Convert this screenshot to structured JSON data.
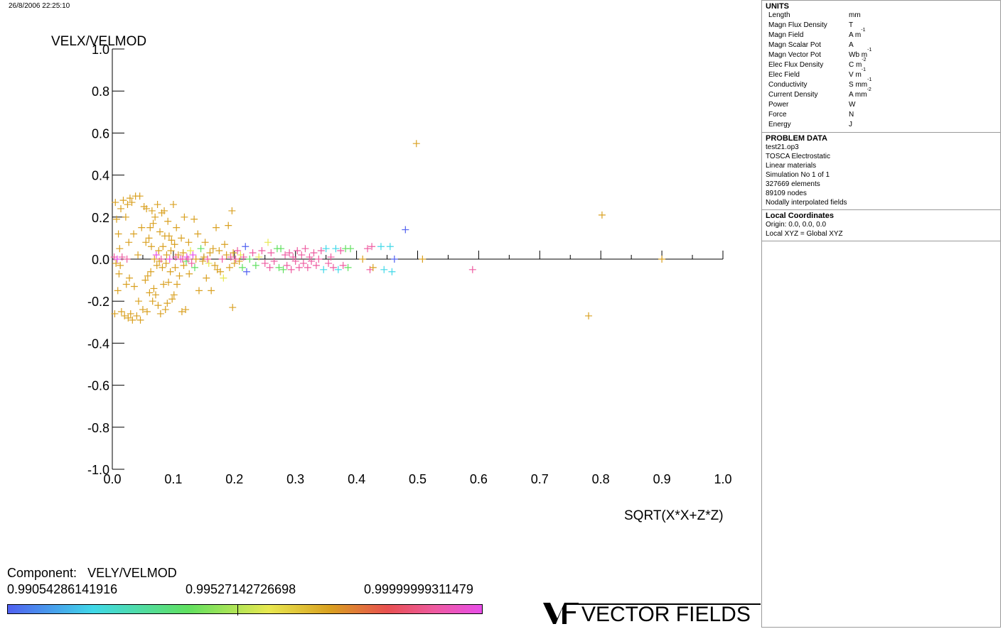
{
  "timestamp": "26/8/2006 22:25:10",
  "chart_data": {
    "type": "scatter",
    "xlabel": "SQRT(X*X+Z*Z)",
    "ylabel": "VELX/VELMOD",
    "xlim": [
      0.0,
      1.0
    ],
    "ylim": [
      -1.0,
      1.0
    ],
    "x_ticks": [
      "0.0",
      "0.1",
      "0.2",
      "0.3",
      "0.4",
      "0.5",
      "0.6",
      "0.7",
      "0.8",
      "0.9",
      "1.0"
    ],
    "y_ticks": [
      "1.0",
      "0.8",
      "0.6",
      "0.4",
      "0.2",
      "0.0",
      "-0.2",
      "-0.4",
      "-0.6",
      "-0.8",
      "-1.0"
    ],
    "marker": "+",
    "color_component": "VELY/VELMOD",
    "color_range": [
      0.99054286141916,
      0.99999999311479
    ],
    "colors": {
      "orange": "#d9a020",
      "pink": "#ee5aa0",
      "magenta": "#e84ee8",
      "green": "#60e060",
      "cyan": "#40d8e8",
      "blue": "#5060f0",
      "yellow": "#e8e850",
      "red": "#e85050",
      "axis": "#000000"
    },
    "points": [
      [
        0.003,
        0.01,
        "pink"
      ],
      [
        0.004,
        -0.26,
        "orange"
      ],
      [
        0.005,
        0.27,
        "orange"
      ],
      [
        0.006,
        -0.02,
        "orange"
      ],
      [
        0.007,
        0.19,
        "orange"
      ],
      [
        0.008,
        0.0,
        "magenta"
      ],
      [
        0.009,
        -0.15,
        "orange"
      ],
      [
        0.01,
        0.12,
        "orange"
      ],
      [
        0.011,
        -0.07,
        "orange"
      ],
      [
        0.012,
        0.05,
        "orange"
      ],
      [
        0.013,
        -0.03,
        "orange"
      ],
      [
        0.014,
        0.24,
        "orange"
      ],
      [
        0.015,
        -0.25,
        "orange"
      ],
      [
        0.016,
        0.01,
        "pink"
      ],
      [
        0.018,
        0.28,
        "orange"
      ],
      [
        0.02,
        -0.27,
        "orange"
      ],
      [
        0.022,
        0.2,
        "orange"
      ],
      [
        0.023,
        -0.12,
        "orange"
      ],
      [
        0.024,
        0.0,
        "pink"
      ],
      [
        0.025,
        0.26,
        "orange"
      ],
      [
        0.026,
        -0.28,
        "orange"
      ],
      [
        0.027,
        0.08,
        "orange"
      ],
      [
        0.028,
        -0.09,
        "orange"
      ],
      [
        0.029,
        0.29,
        "orange"
      ],
      [
        0.03,
        -0.26,
        "orange"
      ],
      [
        0.032,
        0.27,
        "orange"
      ],
      [
        0.033,
        -0.29,
        "orange"
      ],
      [
        0.035,
        0.12,
        "orange"
      ],
      [
        0.036,
        -0.13,
        "orange"
      ],
      [
        0.038,
        0.3,
        "orange"
      ],
      [
        0.04,
        -0.27,
        "orange"
      ],
      [
        0.042,
        0.02,
        "orange"
      ],
      [
        0.043,
        -0.2,
        "orange"
      ],
      [
        0.045,
        0.3,
        "orange"
      ],
      [
        0.046,
        -0.29,
        "orange"
      ],
      [
        0.048,
        0.15,
        "orange"
      ],
      [
        0.05,
        -0.24,
        "orange"
      ],
      [
        0.052,
        0.25,
        "orange"
      ],
      [
        0.054,
        -0.1,
        "orange"
      ],
      [
        0.055,
        0.08,
        "orange"
      ],
      [
        0.056,
        0.24,
        "orange"
      ],
      [
        0.057,
        -0.25,
        "orange"
      ],
      [
        0.058,
        -0.08,
        "orange"
      ],
      [
        0.06,
        0.1,
        "orange"
      ],
      [
        0.061,
        -0.16,
        "orange"
      ],
      [
        0.062,
        0.15,
        "orange"
      ],
      [
        0.063,
        -0.06,
        "orange"
      ],
      [
        0.064,
        0.06,
        "orange"
      ],
      [
        0.065,
        0.23,
        "orange"
      ],
      [
        0.066,
        -0.2,
        "orange"
      ],
      [
        0.067,
        0.17,
        "orange"
      ],
      [
        0.068,
        -0.14,
        "orange"
      ],
      [
        0.069,
        0.0,
        "orange"
      ],
      [
        0.07,
        0.2,
        "orange"
      ],
      [
        0.071,
        -0.17,
        "orange"
      ],
      [
        0.072,
        0.02,
        "magenta"
      ],
      [
        0.073,
        -0.03,
        "orange"
      ],
      [
        0.074,
        0.26,
        "orange"
      ],
      [
        0.075,
        -0.22,
        "orange"
      ],
      [
        0.076,
        0.04,
        "orange"
      ],
      [
        0.077,
        -0.01,
        "orange"
      ],
      [
        0.078,
        0.13,
        "orange"
      ],
      [
        0.079,
        -0.26,
        "orange"
      ],
      [
        0.08,
        0.0,
        "pink"
      ],
      [
        0.081,
        0.22,
        "orange"
      ],
      [
        0.082,
        -0.04,
        "orange"
      ],
      [
        0.083,
        0.06,
        "orange"
      ],
      [
        0.084,
        -0.12,
        "orange"
      ],
      [
        0.085,
        0.23,
        "orange"
      ],
      [
        0.086,
        0.11,
        "orange"
      ],
      [
        0.087,
        -0.24,
        "orange"
      ],
      [
        0.088,
        -0.02,
        "orange"
      ],
      [
        0.089,
        0.02,
        "orange"
      ],
      [
        0.09,
        -0.21,
        "orange"
      ],
      [
        0.091,
        0.18,
        "orange"
      ],
      [
        0.092,
        -0.11,
        "orange"
      ],
      [
        0.093,
        0.11,
        "orange"
      ],
      [
        0.094,
        0.0,
        "magenta"
      ],
      [
        0.095,
        -0.06,
        "orange"
      ],
      [
        0.096,
        0.04,
        "orange"
      ],
      [
        0.097,
        0.09,
        "orange"
      ],
      [
        0.098,
        -0.19,
        "orange"
      ],
      [
        0.1,
        0.26,
        "orange"
      ],
      [
        0.101,
        -0.17,
        "orange"
      ],
      [
        0.102,
        0.07,
        "orange"
      ],
      [
        0.103,
        -0.04,
        "orange"
      ],
      [
        0.104,
        0.01,
        "pink"
      ],
      [
        0.105,
        0.15,
        "orange"
      ],
      [
        0.106,
        -0.12,
        "orange"
      ],
      [
        0.108,
        0.02,
        "orange"
      ],
      [
        0.11,
        -0.08,
        "orange"
      ],
      [
        0.112,
        0.0,
        "magenta"
      ],
      [
        0.113,
        0.1,
        "orange"
      ],
      [
        0.114,
        -0.25,
        "orange"
      ],
      [
        0.115,
        0.0,
        "pink"
      ],
      [
        0.116,
        0.03,
        "orange"
      ],
      [
        0.117,
        -0.03,
        "orange"
      ],
      [
        0.118,
        0.2,
        "orange"
      ],
      [
        0.12,
        -0.24,
        "orange"
      ],
      [
        0.121,
        -0.01,
        "green"
      ],
      [
        0.122,
        0.01,
        "magenta"
      ],
      [
        0.124,
        0.0,
        "pink"
      ],
      [
        0.125,
        0.08,
        "orange"
      ],
      [
        0.126,
        -0.07,
        "orange"
      ],
      [
        0.128,
        0.04,
        "yellow"
      ],
      [
        0.13,
        -0.02,
        "pink"
      ],
      [
        0.132,
        0.02,
        "magenta"
      ],
      [
        0.134,
        0.19,
        "orange"
      ],
      [
        0.135,
        -0.04,
        "green"
      ],
      [
        0.137,
        0.0,
        "orange"
      ],
      [
        0.14,
        0.12,
        "orange"
      ],
      [
        0.142,
        -0.15,
        "orange"
      ],
      [
        0.145,
        0.05,
        "green"
      ],
      [
        0.148,
        -0.01,
        "orange"
      ],
      [
        0.15,
        0.01,
        "orange"
      ],
      [
        0.152,
        0.08,
        "orange"
      ],
      [
        0.154,
        -0.09,
        "orange"
      ],
      [
        0.156,
        0.0,
        "pink"
      ],
      [
        0.158,
        -0.02,
        "yellow"
      ],
      [
        0.16,
        0.03,
        "orange"
      ],
      [
        0.162,
        -0.15,
        "orange"
      ],
      [
        0.165,
        0.05,
        "orange"
      ],
      [
        0.168,
        -0.03,
        "orange"
      ],
      [
        0.17,
        0.15,
        "orange"
      ],
      [
        0.172,
        -0.05,
        "orange"
      ],
      [
        0.175,
        0.04,
        "orange"
      ],
      [
        0.177,
        -0.06,
        "orange"
      ],
      [
        0.18,
        0.0,
        "pink"
      ],
      [
        0.182,
        -0.09,
        "yellow"
      ],
      [
        0.184,
        0.07,
        "orange"
      ],
      [
        0.187,
        0.02,
        "orange"
      ],
      [
        0.19,
        0.16,
        "orange"
      ],
      [
        0.192,
        -0.04,
        "orange"
      ],
      [
        0.194,
        0.01,
        "pink"
      ],
      [
        0.196,
        0.23,
        "orange"
      ],
      [
        0.197,
        -0.23,
        "orange"
      ],
      [
        0.198,
        0.03,
        "orange"
      ],
      [
        0.2,
        -0.02,
        "orange"
      ],
      [
        0.202,
        0.0,
        "pink"
      ],
      [
        0.205,
        0.04,
        "pink"
      ],
      [
        0.208,
        -0.01,
        "orange"
      ],
      [
        0.21,
        0.02,
        "yellow"
      ],
      [
        0.213,
        -0.04,
        "green"
      ],
      [
        0.215,
        0.01,
        "pink"
      ],
      [
        0.218,
        0.06,
        "blue"
      ],
      [
        0.22,
        -0.06,
        "blue"
      ],
      [
        0.225,
        0.0,
        "green"
      ],
      [
        0.23,
        0.03,
        "pink"
      ],
      [
        0.235,
        -0.03,
        "green"
      ],
      [
        0.24,
        0.01,
        "yellow"
      ],
      [
        0.245,
        0.04,
        "pink"
      ],
      [
        0.25,
        -0.02,
        "pink"
      ],
      [
        0.255,
        0.08,
        "yellow"
      ],
      [
        0.258,
        -0.04,
        "pink"
      ],
      [
        0.26,
        0.03,
        "pink"
      ],
      [
        0.265,
        -0.01,
        "pink"
      ],
      [
        0.27,
        0.05,
        "green"
      ],
      [
        0.273,
        -0.04,
        "green"
      ],
      [
        0.276,
        0.05,
        "green"
      ],
      [
        0.28,
        -0.05,
        "green"
      ],
      [
        0.283,
        0.02,
        "pink"
      ],
      [
        0.286,
        -0.03,
        "pink"
      ],
      [
        0.29,
        0.03,
        "pink"
      ],
      [
        0.293,
        -0.05,
        "pink"
      ],
      [
        0.296,
        0.01,
        "pink"
      ],
      [
        0.3,
        -0.01,
        "pink"
      ],
      [
        0.303,
        0.04,
        "pink"
      ],
      [
        0.306,
        -0.04,
        "pink"
      ],
      [
        0.31,
        0.02,
        "pink"
      ],
      [
        0.313,
        -0.02,
        "pink"
      ],
      [
        0.316,
        0.05,
        "pink"
      ],
      [
        0.32,
        -0.04,
        "pink"
      ],
      [
        0.323,
        0.01,
        "pink"
      ],
      [
        0.326,
        -0.01,
        "pink"
      ],
      [
        0.33,
        0.03,
        "pink"
      ],
      [
        0.334,
        -0.03,
        "pink"
      ],
      [
        0.338,
        0.0,
        "pink"
      ],
      [
        0.342,
        0.04,
        "pink"
      ],
      [
        0.346,
        -0.05,
        "cyan"
      ],
      [
        0.35,
        0.05,
        "cyan"
      ],
      [
        0.354,
        -0.02,
        "pink"
      ],
      [
        0.358,
        0.01,
        "pink"
      ],
      [
        0.362,
        -0.04,
        "pink"
      ],
      [
        0.366,
        0.05,
        "cyan"
      ],
      [
        0.37,
        -0.05,
        "cyan"
      ],
      [
        0.374,
        0.04,
        "pink"
      ],
      [
        0.378,
        -0.03,
        "pink"
      ],
      [
        0.382,
        0.05,
        "green"
      ],
      [
        0.386,
        -0.04,
        "green"
      ],
      [
        0.39,
        0.05,
        "green"
      ],
      [
        0.41,
        0.0,
        "orange"
      ],
      [
        0.418,
        0.05,
        "pink"
      ],
      [
        0.422,
        -0.05,
        "pink"
      ],
      [
        0.425,
        0.06,
        "pink"
      ],
      [
        0.427,
        -0.04,
        "orange"
      ],
      [
        0.44,
        0.06,
        "cyan"
      ],
      [
        0.445,
        -0.05,
        "cyan"
      ],
      [
        0.455,
        0.06,
        "cyan"
      ],
      [
        0.458,
        -0.06,
        "cyan"
      ],
      [
        0.462,
        0.0,
        "blue"
      ],
      [
        0.48,
        0.14,
        "blue"
      ],
      [
        0.498,
        0.55,
        "orange"
      ],
      [
        0.508,
        0.0,
        "orange"
      ],
      [
        0.59,
        -0.05,
        "pink"
      ],
      [
        0.78,
        -0.27,
        "orange"
      ],
      [
        0.802,
        0.21,
        "orange"
      ],
      [
        0.9,
        0.0,
        "orange"
      ]
    ]
  },
  "legend": {
    "label": "Component:",
    "component": "VELY/VELMOD",
    "min": "0.99054286141916",
    "mid": "0.99527142726698",
    "max": "0.99999999311479"
  },
  "logo": {
    "text": "VECTOR FIELDS",
    "mark": "VF"
  },
  "units": {
    "title": "UNITS",
    "rows": [
      {
        "k": "Length",
        "v": "mm",
        "sup": ""
      },
      {
        "k": "Magn Flux Density",
        "v": "T",
        "sup": ""
      },
      {
        "k": "Magn Field",
        "v": "A m",
        "sup": "-1"
      },
      {
        "k": "Magn Scalar Pot",
        "v": "A",
        "sup": ""
      },
      {
        "k": "Magn Vector Pot",
        "v": "Wb m",
        "sup": "-1"
      },
      {
        "k": "Elec Flux Density",
        "v": "C m",
        "sup": "-2"
      },
      {
        "k": "Elec Field",
        "v": "V m",
        "sup": "-1"
      },
      {
        "k": "Conductivity",
        "v": "S mm",
        "sup": "-1"
      },
      {
        "k": "Current Density",
        "v": "A mm",
        "sup": "-2"
      },
      {
        "k": "Power",
        "v": "W",
        "sup": ""
      },
      {
        "k": "Force",
        "v": "N",
        "sup": ""
      },
      {
        "k": "Energy",
        "v": "J",
        "sup": ""
      }
    ]
  },
  "problem": {
    "title": "PROBLEM DATA",
    "lines": [
      "test21.op3",
      "TOSCA Electrostatic",
      "Linear materials",
      "Simulation No 1 of 1",
      "327669 elements",
      "89109 nodes",
      "Nodally interpolated fields"
    ]
  },
  "local": {
    "title": "Local Coordinates",
    "lines": [
      "Origin: 0.0, 0.0, 0.0",
      "Local XYZ = Global XYZ"
    ]
  }
}
